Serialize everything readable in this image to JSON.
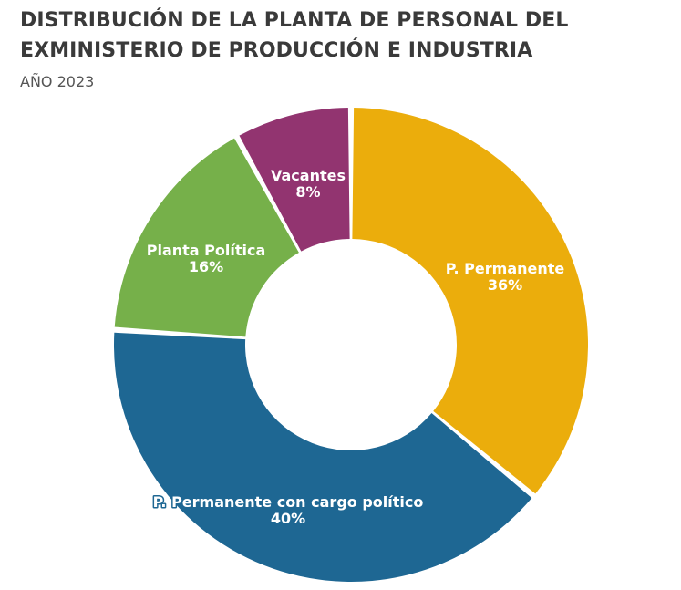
{
  "chart_data": {
    "type": "pie",
    "variant": "donut",
    "title_lines": [
      "DISTRIBUCIÓN DE LA PLANTA DE PERSONAL DEL",
      "EXMINISTERIO DE PRODUCCIÓN E INDUSTRIA"
    ],
    "subtitle": "AÑO 2023",
    "slices": [
      {
        "label": "P. Permanente",
        "value": 36,
        "value_label": "36%",
        "color": "#ebad0c"
      },
      {
        "label": "P. Permanente con cargo político",
        "value": 40,
        "value_label": "40%",
        "color": "#1e6793"
      },
      {
        "label": "Planta Política",
        "value": 16,
        "value_label": "16%",
        "color": "#76b04a"
      },
      {
        "label": "Vacantes",
        "value": 8,
        "value_label": "8%",
        "color": "#923470"
      }
    ],
    "legend": "none"
  }
}
